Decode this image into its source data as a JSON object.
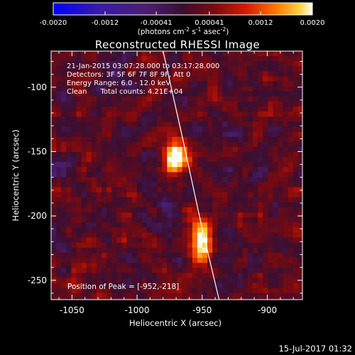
{
  "chart_data": {
    "type": "heatmap",
    "title": "Reconstructed RHESSI Image",
    "colorbar": {
      "ticks": [
        "-0.0020",
        "-0.0012",
        "-0.00041",
        "0.00041",
        "0.0012",
        "0.0020"
      ],
      "min": -0.002,
      "max": 0.002,
      "label": "(photons cm",
      "label_sup1": "-2",
      "label_mid": " s",
      "label_sup2": "-1",
      "label_end": " asec",
      "label_sup3": "-2",
      "label_close": ")"
    },
    "info_lines": [
      "21-Jan-2015 03:07:28.000 to 03:17:28.000",
      "Detectors: 3F 5F 6F 7F 8F 9F, Att 0",
      "Energy Range: 6.0 - 12.0 keV",
      "Clean      Total counts: 4.21E+04"
    ],
    "peak_label": "Position of Peak = [-952,-218]",
    "xlabel": "Heliocentric X (arcsec)",
    "ylabel": "Heliocentric Y (arcsec)",
    "xlim": [
      -1066,
      -873
    ],
    "ylim": [
      -265,
      -72
    ],
    "xticks": [
      -1050,
      -1000,
      -950,
      -900
    ],
    "yticks": [
      -100,
      -150,
      -200,
      -250
    ],
    "xtick_labels": [
      "-1050",
      "-1000",
      "-950",
      "-900"
    ],
    "ytick_labels": [
      "-100",
      "-150",
      "-200",
      "-250"
    ],
    "sources": [
      {
        "x": -971,
        "y": -153,
        "peak": 0.00195
      },
      {
        "x": -952,
        "y": -218,
        "peak": 0.002
      }
    ],
    "limb": [
      [
        -980,
        -72
      ],
      [
        -965,
        -140
      ],
      [
        -950,
        -210
      ],
      [
        -937,
        -265
      ]
    ],
    "timestamp": "15-Jul-2017 01:32"
  }
}
